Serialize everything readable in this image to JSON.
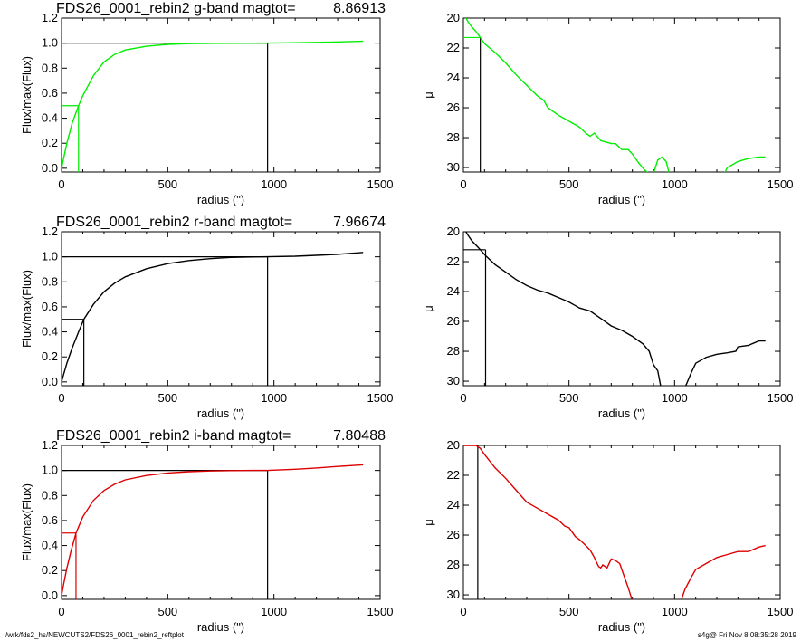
{
  "footer": {
    "path": "/wrk/fds2_hs/NEWCUTS2/FDS26_0001_rebin2_reftplot",
    "stamp": "s4g@  Fri Nov  8 08:35:28 2019"
  },
  "colors": {
    "g": "#00ee00",
    "r": "#000000",
    "i": "#dd0000",
    "frame": "#000000"
  },
  "chart_data": [
    {
      "type": "line",
      "band": "g",
      "kind": "growth_curve",
      "title": "FDS26_0001_rebin2 g-band  magtot=",
      "magtot": "8.86913",
      "xlabel": "radius (\")",
      "ylabel": "Flux/max(Flux)",
      "xlim": [
        0,
        1500
      ],
      "ylim": [
        -0.03,
        1.2
      ],
      "xticks": [
        0,
        500,
        1000,
        1500
      ],
      "yticks": [
        0.0,
        0.2,
        0.4,
        0.6,
        0.8,
        1.0,
        1.2
      ],
      "ytick_labels": [
        "0.0",
        "0.2",
        "0.4",
        "0.6",
        "0.8",
        "1.0",
        "1.2"
      ],
      "r_half": 80,
      "r_total": 970,
      "series": [
        {
          "color": "#00ee00",
          "x": [
            0,
            10,
            25,
            50,
            80,
            100,
            150,
            200,
            250,
            300,
            400,
            500,
            600,
            700,
            800,
            970,
            1100,
            1200,
            1300,
            1420
          ],
          "y": [
            0.0,
            0.08,
            0.2,
            0.36,
            0.5,
            0.58,
            0.74,
            0.85,
            0.91,
            0.945,
            0.975,
            0.99,
            0.996,
            0.998,
            0.999,
            1.0,
            1.003,
            1.006,
            1.01,
            1.015
          ]
        }
      ]
    },
    {
      "type": "line",
      "band": "g",
      "kind": "surface_brightness",
      "xlabel": "radius (\")",
      "ylabel": "μ",
      "xlim": [
        0,
        1500
      ],
      "ylim": [
        20,
        30.3
      ],
      "yinvert": true,
      "xticks": [
        0,
        500,
        1000,
        1500
      ],
      "yticks": [
        20,
        22,
        24,
        26,
        28,
        30
      ],
      "r_half": 80,
      "mu_half": 21.3,
      "series": [
        {
          "color": "#00ee00",
          "segments": [
            {
              "x": [
                0,
                20,
                40,
                60,
                80,
                100,
                150,
                200,
                250,
                300,
                350,
                380,
                400,
                450,
                500,
                550,
                580,
                600,
                620,
                650,
                700,
                720,
                750,
                780,
                800,
                830,
                860,
                880
              ],
              "y": [
                19.7,
                20.2,
                20.6,
                20.9,
                21.3,
                21.7,
                22.3,
                23.0,
                23.8,
                24.5,
                25.2,
                25.5,
                26.0,
                26.5,
                26.9,
                27.3,
                27.7,
                27.9,
                27.7,
                28.2,
                28.4,
                28.4,
                28.8,
                28.8,
                29.1,
                29.7,
                30.2,
                30.4
              ]
            },
            {
              "x": [
                900,
                920,
                940,
                960,
                975
              ],
              "y": [
                30.4,
                29.5,
                29.3,
                29.6,
                30.4
              ]
            },
            {
              "x": [
                1235,
                1250,
                1300,
                1350,
                1400,
                1430
              ],
              "y": [
                30.4,
                30.0,
                29.6,
                29.4,
                29.3,
                29.3
              ]
            }
          ]
        }
      ]
    },
    {
      "type": "line",
      "band": "r",
      "kind": "growth_curve",
      "title": "FDS26_0001_rebin2 r-band  magtot=",
      "magtot": "7.96674",
      "xlabel": "radius (\")",
      "ylabel": "Flux/max(Flux)",
      "xlim": [
        0,
        1500
      ],
      "ylim": [
        -0.03,
        1.2
      ],
      "xticks": [
        0,
        500,
        1000,
        1500
      ],
      "yticks": [
        0.0,
        0.2,
        0.4,
        0.6,
        0.8,
        1.0,
        1.2
      ],
      "ytick_labels": [
        "0.0",
        "0.2",
        "0.4",
        "0.6",
        "0.8",
        "1.0",
        "1.2"
      ],
      "r_half": 105,
      "r_total": 970,
      "series": [
        {
          "color": "#000000",
          "x": [
            0,
            10,
            25,
            50,
            80,
            105,
            150,
            200,
            250,
            300,
            400,
            500,
            600,
            700,
            800,
            900,
            970,
            1100,
            1200,
            1300,
            1420
          ],
          "y": [
            0.0,
            0.06,
            0.15,
            0.27,
            0.4,
            0.5,
            0.62,
            0.72,
            0.79,
            0.84,
            0.905,
            0.945,
            0.97,
            0.985,
            0.995,
            0.999,
            1.0,
            1.005,
            1.012,
            1.02,
            1.035
          ]
        }
      ]
    },
    {
      "type": "line",
      "band": "r",
      "kind": "surface_brightness",
      "xlabel": "radius (\")",
      "ylabel": "μ",
      "xlim": [
        0,
        1500
      ],
      "ylim": [
        20,
        30.3
      ],
      "yinvert": true,
      "xticks": [
        0,
        500,
        1000,
        1500
      ],
      "yticks": [
        20,
        22,
        24,
        26,
        28,
        30
      ],
      "r_half": 105,
      "mu_half": 21.2,
      "series": [
        {
          "color": "#000000",
          "segments": [
            {
              "x": [
                0,
                20,
                40,
                60,
                80,
                105,
                150,
                200,
                250,
                300,
                350,
                400,
                450,
                500,
                550,
                600,
                650,
                700,
                750,
                800,
                850,
                880,
                900,
                920,
                935
              ],
              "y": [
                19.7,
                20.2,
                20.6,
                20.9,
                21.2,
                21.6,
                22.2,
                22.7,
                23.2,
                23.6,
                23.9,
                24.1,
                24.4,
                24.7,
                25.1,
                25.3,
                25.8,
                26.3,
                26.6,
                27.0,
                27.5,
                28.0,
                28.9,
                29.3,
                30.4
              ]
            },
            {
              "x": [
                1050,
                1080,
                1100,
                1150,
                1200,
                1250,
                1290,
                1300,
                1350,
                1400,
                1430
              ],
              "y": [
                30.4,
                29.4,
                28.8,
                28.4,
                28.2,
                28.1,
                28.0,
                27.7,
                27.6,
                27.3,
                27.3
              ]
            }
          ]
        }
      ]
    },
    {
      "type": "line",
      "band": "i",
      "kind": "growth_curve",
      "title": "FDS26_0001_rebin2 i-band  magtot=",
      "magtot": "7.80488",
      "xlabel": "radius (\")",
      "ylabel": "Flux/max(Flux)",
      "xlim": [
        0,
        1500
      ],
      "ylim": [
        -0.03,
        1.2
      ],
      "xticks": [
        0,
        500,
        1000,
        1500
      ],
      "yticks": [
        0.0,
        0.2,
        0.4,
        0.6,
        0.8,
        1.0,
        1.2
      ],
      "ytick_labels": [
        "0.0",
        "0.2",
        "0.4",
        "0.6",
        "0.8",
        "1.0",
        "1.2"
      ],
      "r_half": 68,
      "r_total": 970,
      "series": [
        {
          "color": "#dd0000",
          "x": [
            0,
            10,
            25,
            45,
            68,
            100,
            150,
            200,
            250,
            300,
            400,
            500,
            600,
            700,
            800,
            900,
            970,
            1100,
            1200,
            1300,
            1420
          ],
          "y": [
            0.0,
            0.09,
            0.22,
            0.36,
            0.5,
            0.63,
            0.76,
            0.84,
            0.89,
            0.925,
            0.96,
            0.98,
            0.99,
            0.996,
            0.999,
            1.0,
            1.0,
            1.01,
            1.02,
            1.032,
            1.045
          ]
        }
      ]
    },
    {
      "type": "line",
      "band": "i",
      "kind": "surface_brightness",
      "xlabel": "radius (\")",
      "ylabel": "μ",
      "xlim": [
        0,
        1500
      ],
      "ylim": [
        20,
        30.3
      ],
      "yinvert": true,
      "xticks": [
        0,
        500,
        1000,
        1500
      ],
      "yticks": [
        20,
        22,
        24,
        26,
        28,
        30
      ],
      "r_half": 68,
      "mu_half": 20.0,
      "series": [
        {
          "color": "#dd0000",
          "segments": [
            {
              "x": [
                0,
                30,
                60,
                80,
                100,
                150,
                200,
                250,
                300,
                350,
                400,
                450,
                480,
                500,
                530,
                550,
                580,
                600,
                620,
                640,
                650,
                660,
                680,
                700,
                720,
                740,
                760,
                780,
                800
              ],
              "y": [
                20.0,
                20.0,
                20.0,
                20.2,
                20.6,
                21.5,
                22.2,
                23.0,
                23.8,
                24.2,
                24.6,
                25.0,
                25.4,
                25.5,
                26.1,
                26.3,
                26.7,
                27.0,
                27.5,
                28.1,
                28.2,
                28.0,
                28.2,
                27.6,
                27.7,
                27.9,
                28.7,
                29.5,
                30.4
              ]
            },
            {
              "x": [
                1030,
                1050,
                1080,
                1100,
                1150,
                1200,
                1250,
                1300,
                1350,
                1400,
                1430
              ],
              "y": [
                30.4,
                29.6,
                28.8,
                28.3,
                27.9,
                27.5,
                27.3,
                27.1,
                27.1,
                26.8,
                26.7
              ]
            }
          ]
        }
      ]
    }
  ]
}
